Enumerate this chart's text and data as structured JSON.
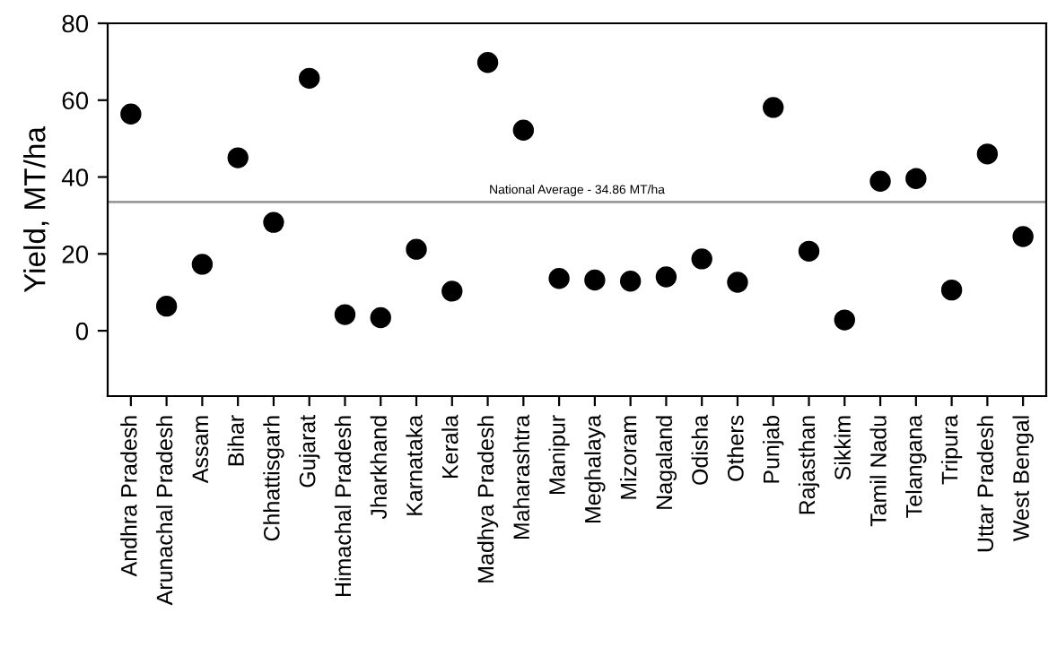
{
  "chart_data": {
    "type": "scatter",
    "ylabel": "Yield, MT/ha",
    "categories": [
      "Andhra Pradesh",
      "Arunachal Pradesh",
      "Assam",
      "Bihar",
      "Chhattisgarh",
      "Gujarat",
      "Himachal Pradesh",
      "Jharkhand",
      "Karnataka",
      "Kerala",
      "Madhya Pradesh",
      "Maharashtra",
      "Manipur",
      "Meghalaya",
      "Mizoram",
      "Nagaland",
      "Odisha",
      "Others",
      "Punjab",
      "Rajasthan",
      "Sikkim",
      "Tamil Nadu",
      "Telangana",
      "Tripura",
      "Uttar Pradesh",
      "West Bengal"
    ],
    "series": [
      {
        "color": "#000000",
        "values": [
          56.4,
          6.4,
          17.3,
          45,
          28.2,
          65.7,
          4.2,
          3.4,
          21.2,
          10.3,
          69.8,
          52.2,
          13.6,
          13.2,
          12.9,
          14,
          18.7,
          12.6,
          58.1,
          20.7,
          2.8,
          38.9,
          39.6,
          10.6,
          46,
          24.5
        ]
      }
    ],
    "ylim": [
      -17,
      80
    ],
    "yticks": [
      0,
      20,
      40,
      60,
      80
    ],
    "grid": false,
    "marker": "circle",
    "ref_lines": [
      {
        "axis": "y",
        "value": 33.5,
        "label": "National Average - 34.86 MT/ha",
        "color": "#999999"
      }
    ]
  }
}
